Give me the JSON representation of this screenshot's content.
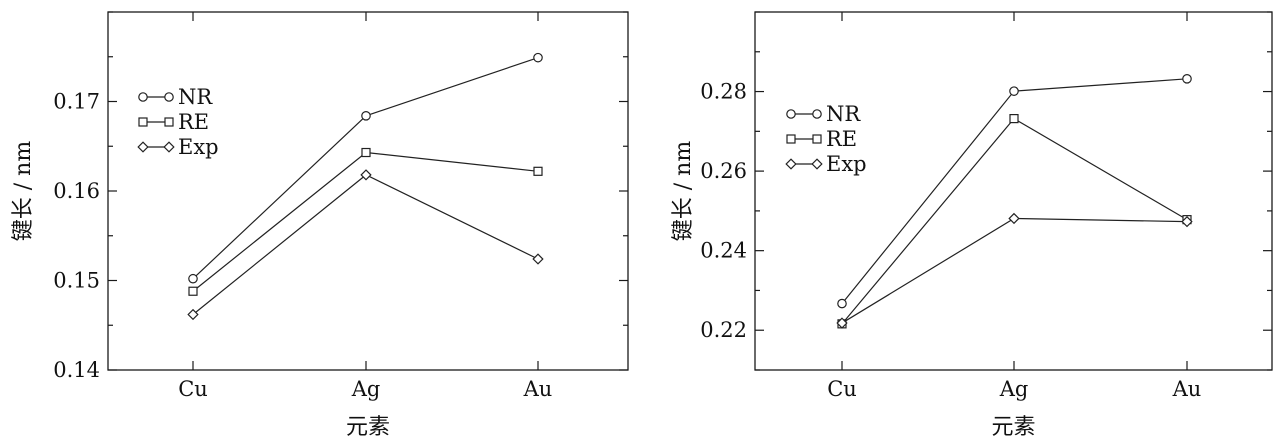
{
  "chart_data": [
    {
      "type": "line",
      "title": "",
      "xlabel": "元素",
      "ylabel": "键长 / nm",
      "categories": [
        "Cu",
        "Ag",
        "Au"
      ],
      "ylim": [
        0.14,
        0.18
      ],
      "yticks": [
        0.14,
        0.15,
        0.16,
        0.17
      ],
      "ytick_labels": [
        "0.14",
        "0.15",
        "0.16",
        "0.17"
      ],
      "legend_position": "upper-left",
      "grid": false,
      "series": [
        {
          "name": "NR",
          "marker": "circle",
          "values": [
            0.1502,
            0.1684,
            0.1749
          ]
        },
        {
          "name": "RE",
          "marker": "square",
          "values": [
            0.1488,
            0.1643,
            0.1622
          ]
        },
        {
          "name": "Exp",
          "marker": "diamond",
          "values": [
            0.1462,
            0.1618,
            0.1524
          ]
        }
      ]
    },
    {
      "type": "line",
      "title": "",
      "xlabel": "元素",
      "ylabel": "键长 / nm",
      "categories": [
        "Cu",
        "Ag",
        "Au"
      ],
      "ylim": [
        0.21,
        0.3
      ],
      "yticks": [
        0.22,
        0.24,
        0.26,
        0.28
      ],
      "ytick_labels": [
        "0.22",
        "0.24",
        "0.26",
        "0.28"
      ],
      "legend_position": "upper-left",
      "grid": false,
      "series": [
        {
          "name": "NR",
          "marker": "circle",
          "values": [
            0.2267,
            0.2801,
            0.2832
          ]
        },
        {
          "name": "RE",
          "marker": "square",
          "values": [
            0.2216,
            0.2732,
            0.2478
          ]
        },
        {
          "name": "Exp",
          "marker": "diamond",
          "values": [
            0.2218,
            0.2481,
            0.2473
          ]
        }
      ]
    }
  ]
}
